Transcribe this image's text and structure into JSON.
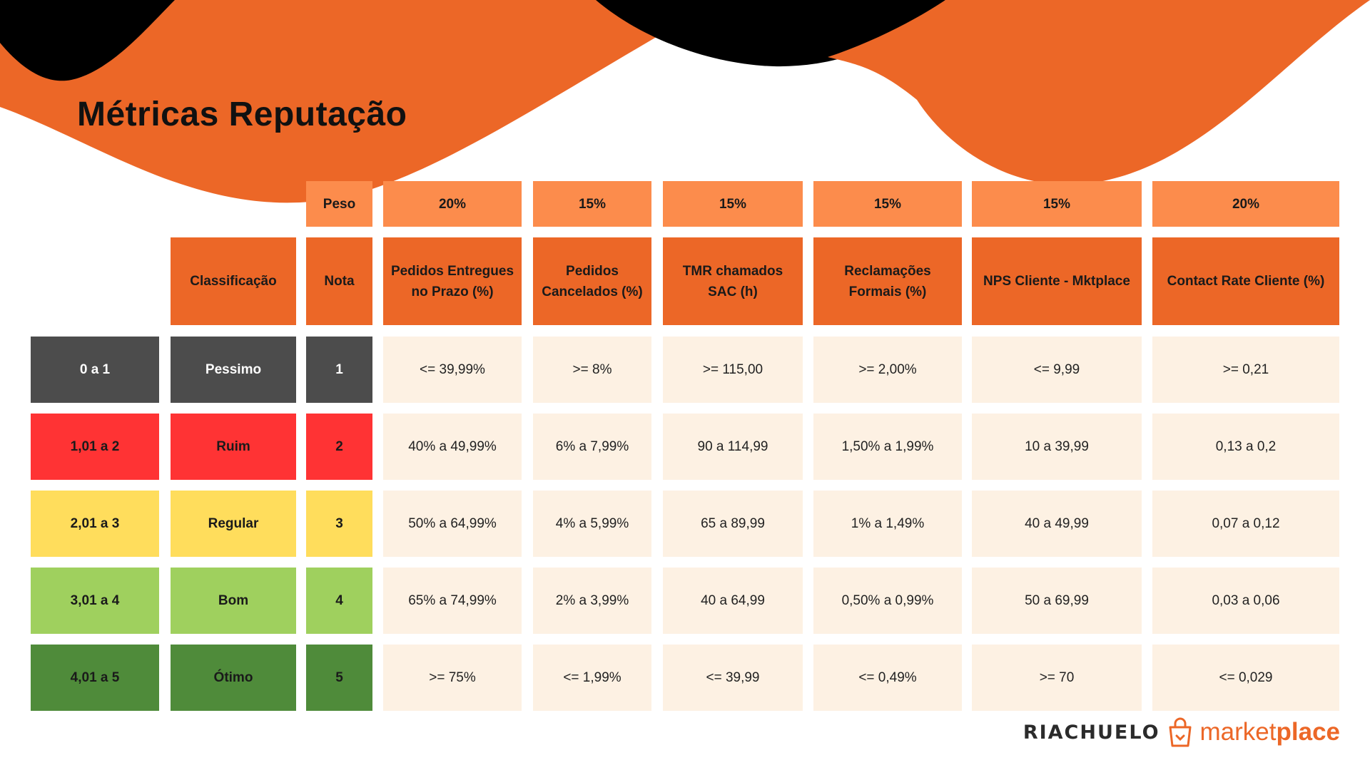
{
  "page": {
    "title": "Métricas Reputação"
  },
  "table": {
    "weight_label": "Peso",
    "weights": [
      "20%",
      "15%",
      "15%",
      "15%",
      "15%",
      "20%"
    ],
    "headers": {
      "classificacao": "Classificação",
      "nota": "Nota",
      "metrics": [
        "Pedidos Entregues no Prazo (%)",
        "Pedidos Cancelados (%)",
        "TMR chamados SAC (h)",
        "Reclamações Formais (%)",
        "NPS Cliente - Mktplace",
        "Contact Rate Cliente (%)"
      ]
    },
    "rows": [
      {
        "range": "0 a 1",
        "label": "Pessimo",
        "nota": "1",
        "color": "#4c4c4c",
        "text_color": "#ffffff",
        "values": [
          "<= 39,99%",
          ">= 8%",
          ">= 115,00",
          ">= 2,00%",
          "<= 9,99",
          ">= 0,21"
        ]
      },
      {
        "range": "1,01 a 2",
        "label": "Ruim",
        "nota": "2",
        "color": "#ff3334",
        "text_color": "#1a1a1a",
        "values": [
          "40% a 49,99%",
          "6% a 7,99%",
          "90 a 114,99",
          "1,50% a 1,99%",
          "10 a 39,99",
          "0,13 a 0,2"
        ]
      },
      {
        "range": "2,01 a 3",
        "label": "Regular",
        "nota": "3",
        "color": "#ffdd5c",
        "text_color": "#1a1a1a",
        "values": [
          "50% a 64,99%",
          "4% a 5,99%",
          "65 a 89,99",
          "1% a 1,49%",
          "40 a 49,99",
          "0,07 a 0,12"
        ]
      },
      {
        "range": "3,01 a 4",
        "label": "Bom",
        "nota": "4",
        "color": "#9fd05e",
        "text_color": "#1a1a1a",
        "values": [
          "65% a 74,99%",
          "2% a 3,99%",
          "40 a 64,99",
          "0,50% a 0,99%",
          "50 a 69,99",
          "0,03 a 0,06"
        ]
      },
      {
        "range": "4,01 a 5",
        "label": "Ótimo",
        "nota": "5",
        "color": "#4f8b3a",
        "text_color": "#1a1a1a",
        "values": [
          ">= 75%",
          "<= 1,99%",
          "<= 39,99",
          "<= 0,49%",
          ">= 70",
          "<= 0,029"
        ]
      }
    ]
  },
  "brand": {
    "name": "RIACHUELO",
    "market_part1": "market",
    "market_part2": "place",
    "icon": "shopping-bag-icon",
    "accent": "#ec6727"
  }
}
